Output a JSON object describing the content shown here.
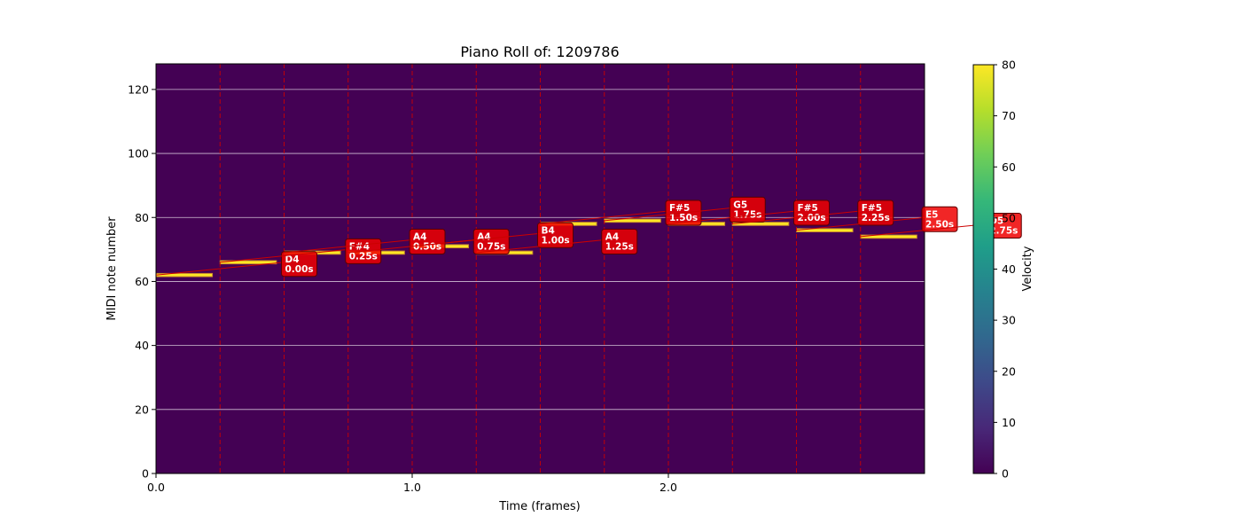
{
  "chart_data": {
    "type": "heatmap",
    "title": "Piano Roll of: 1209786",
    "xlabel": "Time (frames)",
    "ylabel": "MIDI note number",
    "xlim": [
      0,
      3.0
    ],
    "ylim": [
      0,
      128
    ],
    "x_ticks": [
      {
        "value": 0,
        "label": "0.0"
      },
      {
        "value": 1,
        "label": "1.0"
      },
      {
        "value": 2,
        "label": "2.0"
      }
    ],
    "y_ticks": [
      0,
      20,
      40,
      60,
      80,
      100,
      120
    ],
    "grid": "horizontal",
    "colorbar": {
      "label": "Velocity",
      "range": [
        0,
        80
      ],
      "ticks": [
        0,
        10,
        20,
        30,
        40,
        50,
        60,
        70,
        80
      ],
      "colormap": [
        "#440154",
        "#482878",
        "#3e4989",
        "#31688e",
        "#26828e",
        "#1f9e89",
        "#35b779",
        "#6ece58",
        "#b5de2b",
        "#fde725"
      ]
    },
    "background_color": "#440154",
    "note_color": "#fde725",
    "marker_color": "#cc0000",
    "notes": [
      {
        "pitch": 62,
        "start": 0.0,
        "end": 0.22,
        "velocity": 80
      },
      {
        "pitch": 66,
        "start": 0.25,
        "end": 0.47,
        "velocity": 80
      },
      {
        "pitch": 69,
        "start": 0.5,
        "end": 0.72,
        "velocity": 80
      },
      {
        "pitch": 69,
        "start": 0.75,
        "end": 0.97,
        "velocity": 80
      },
      {
        "pitch": 71,
        "start": 1.0,
        "end": 1.22,
        "velocity": 80
      },
      {
        "pitch": 69,
        "start": 1.25,
        "end": 1.47,
        "velocity": 80
      },
      {
        "pitch": 78,
        "start": 1.5,
        "end": 1.72,
        "velocity": 80
      },
      {
        "pitch": 79,
        "start": 1.75,
        "end": 1.97,
        "velocity": 80
      },
      {
        "pitch": 78,
        "start": 2.0,
        "end": 2.22,
        "velocity": 80
      },
      {
        "pitch": 78,
        "start": 2.25,
        "end": 2.47,
        "velocity": 80
      },
      {
        "pitch": 76,
        "start": 2.5,
        "end": 2.72,
        "velocity": 80
      },
      {
        "pitch": 74,
        "start": 2.75,
        "end": 2.97,
        "velocity": 80
      }
    ],
    "onset_lines": [
      0.0,
      0.25,
      0.5,
      0.75,
      1.0,
      1.25,
      1.5,
      1.75,
      2.0,
      2.25,
      2.5,
      2.75
    ],
    "annotations": [
      {
        "note": "D4",
        "time": "0.00s",
        "anchor_t": 0.0,
        "anchor_p": 62,
        "box_t": 0.5,
        "box_p": 66
      },
      {
        "note": "F#4",
        "time": "0.25s",
        "anchor_t": 0.25,
        "anchor_p": 66,
        "box_t": 0.75,
        "box_p": 70
      },
      {
        "note": "A4",
        "time": "0.50s",
        "anchor_t": 0.5,
        "anchor_p": 69,
        "box_t": 1.0,
        "box_p": 73
      },
      {
        "note": "A4",
        "time": "0.75s",
        "anchor_t": 0.75,
        "anchor_p": 69,
        "box_t": 1.25,
        "box_p": 73
      },
      {
        "note": "B4",
        "time": "1.00s",
        "anchor_t": 1.0,
        "anchor_p": 71,
        "box_t": 1.5,
        "box_p": 75
      },
      {
        "note": "A4",
        "time": "1.25s",
        "anchor_t": 1.25,
        "anchor_p": 69,
        "box_t": 1.75,
        "box_p": 73
      },
      {
        "note": "F#5",
        "time": "1.50s",
        "anchor_t": 1.5,
        "anchor_p": 78,
        "box_t": 2.0,
        "box_p": 82
      },
      {
        "note": "G5",
        "time": "1.75s",
        "anchor_t": 1.75,
        "anchor_p": 79,
        "box_t": 2.25,
        "box_p": 83
      },
      {
        "note": "F#5",
        "time": "2.00s",
        "anchor_t": 2.0,
        "anchor_p": 78,
        "box_t": 2.5,
        "box_p": 82
      },
      {
        "note": "F#5",
        "time": "2.25s",
        "anchor_t": 2.25,
        "anchor_p": 78,
        "box_t": 2.75,
        "box_p": 82
      },
      {
        "note": "E5",
        "time": "2.50s",
        "anchor_t": 2.5,
        "anchor_p": 76,
        "box_t": 3.0,
        "box_p": 80
      },
      {
        "note": "D5",
        "time": "2.75s",
        "anchor_t": 2.75,
        "anchor_p": 74,
        "box_t": 3.25,
        "box_p": 78
      }
    ]
  }
}
